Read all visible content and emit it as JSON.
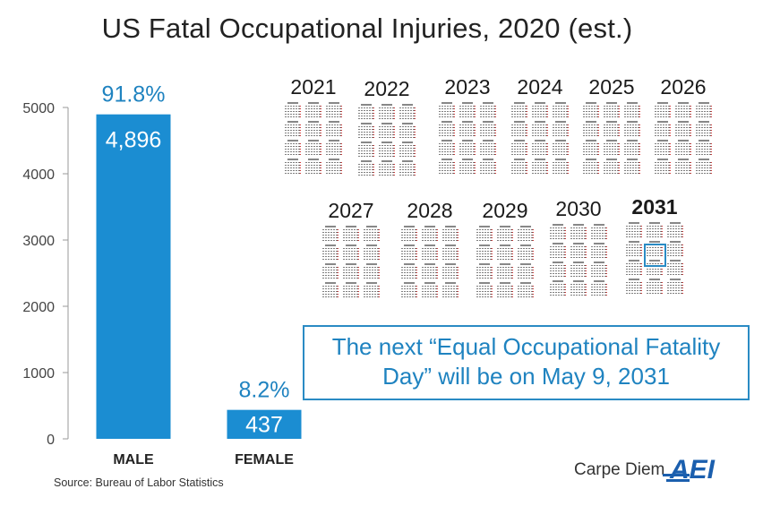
{
  "title": "US Fatal Occupational Injuries, 2020 (est.)",
  "colors": {
    "bar": "#1b8dd2",
    "accent_text": "#1f83c0",
    "axis_text": "#444444"
  },
  "chart_data": {
    "type": "bar",
    "title": "US Fatal Occupational Injuries, 2020 (est.)",
    "categories": [
      "MALE",
      "FEMALE"
    ],
    "values": [
      4896,
      437
    ],
    "value_labels": [
      "4,896",
      "437"
    ],
    "percent_labels": [
      "91.8%",
      "8.2%"
    ],
    "ylim": [
      0,
      5000
    ],
    "yticks": [
      0,
      1000,
      2000,
      3000,
      4000,
      5000
    ],
    "ytick_labels": [
      "0",
      "1000",
      "2000",
      "3000",
      "4000",
      "5000"
    ],
    "xlabel": "",
    "ylabel": "",
    "grid": false,
    "legend": "none"
  },
  "calendars": [
    {
      "year": "2021"
    },
    {
      "year": "2022"
    },
    {
      "year": "2023"
    },
    {
      "year": "2024"
    },
    {
      "year": "2025"
    },
    {
      "year": "2026"
    },
    {
      "year": "2027"
    },
    {
      "year": "2028"
    },
    {
      "year": "2029"
    },
    {
      "year": "2030"
    },
    {
      "year": "2031",
      "bold": true
    }
  ],
  "callout": {
    "line1": "The next “Equal Occupational Fatality",
    "line2": "Day” will be on May 9, 2031"
  },
  "source": "Source: Bureau of Labor Statistics",
  "brand": {
    "text": "Carpe Diem",
    "logo": "AEI"
  }
}
